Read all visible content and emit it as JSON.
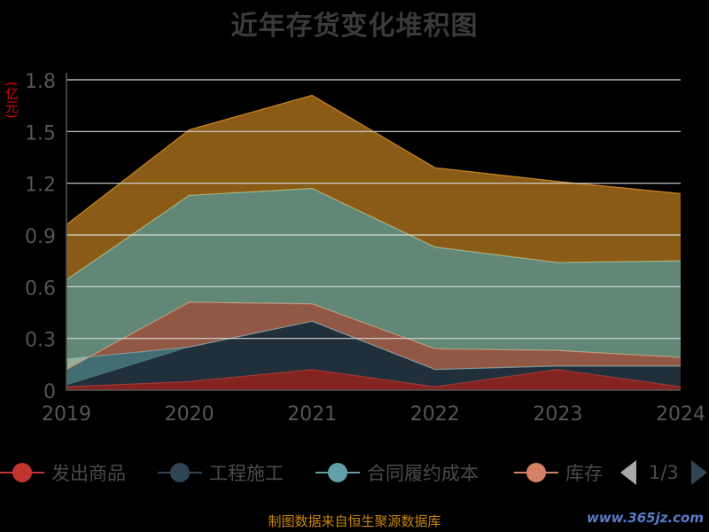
{
  "title": "近年存货变化堆积图",
  "unit": "(亿元)",
  "source": "制图数据来自恒生聚源数据库",
  "watermark": "www.365jz.com",
  "legend": {
    "items": [
      "发出商品",
      "工程施工",
      "合同履约成本",
      "库存"
    ],
    "page": "1/3"
  },
  "colors": {
    "grid": "#d9d9d9",
    "axis": "#555555",
    "tick": "#555555",
    "unit": "#dd0000"
  },
  "chart_data": {
    "type": "area",
    "stacked": true,
    "x": [
      "2019",
      "2020",
      "2021",
      "2022",
      "2023",
      "2024"
    ],
    "ylim": [
      0,
      1.8
    ],
    "yticks": [
      "0",
      "0.3",
      "0.6",
      "0.9",
      "1.2",
      "1.5",
      "1.8"
    ],
    "ylabel": "(亿元)",
    "grid": true,
    "legend_position": "bottom",
    "series": [
      {
        "name": "发出商品",
        "color": "#c23531",
        "values": [
          0.02,
          0.05,
          0.12,
          0.02,
          0.12,
          0.02
        ]
      },
      {
        "name": "工程施工",
        "color": "#2f4554",
        "values": [
          0.01,
          0.2,
          0.28,
          0.1,
          0.02,
          0.12
        ]
      },
      {
        "name": "合同履约成本",
        "color": "#61a0a8",
        "values": [
          0.15,
          0.0,
          0.0,
          0.0,
          0.0,
          0.0
        ]
      },
      {
        "name": "库存",
        "color": "#d48265",
        "values": [
          -0.06,
          0.26,
          0.1,
          0.12,
          0.09,
          0.05
        ]
      },
      {
        "color": "#91c7ae",
        "values": [
          0.52,
          0.62,
          0.67,
          0.59,
          0.51,
          0.56
        ]
      },
      {
        "color": "#ca8622",
        "values": [
          0.32,
          0.38,
          0.54,
          0.46,
          0.47,
          0.39
        ]
      }
    ]
  }
}
